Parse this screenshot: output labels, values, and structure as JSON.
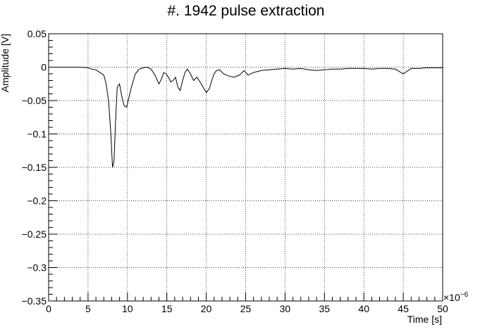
{
  "chart_data": {
    "type": "line",
    "title": "#. 1942 pulse extraction",
    "xlabel": "Time [s]",
    "ylabel": "Amplitude [V]",
    "x_multiplier_base": "×10",
    "x_multiplier_exp": "−6",
    "xlim": [
      0,
      50
    ],
    "ylim": [
      -0.35,
      0.05
    ],
    "x_ticks": [
      0,
      5,
      10,
      15,
      20,
      25,
      30,
      35,
      40,
      45,
      50
    ],
    "x_tick_labels": [
      "0",
      "5",
      "10",
      "15",
      "20",
      "25",
      "30",
      "35",
      "40",
      "45",
      "50"
    ],
    "y_ticks": [
      0.05,
      0,
      -0.05,
      -0.1,
      -0.15,
      -0.2,
      -0.25,
      -0.3,
      -0.35
    ],
    "y_tick_labels": [
      "0.05",
      "0",
      "−0.05",
      "−0.1",
      "−0.15",
      "−0.2",
      "−0.25",
      "−0.3",
      "−0.35"
    ],
    "grid": true,
    "line_color": "#000000",
    "series": [
      {
        "x": [
          0,
          1,
          2,
          3,
          4,
          5,
          5.5,
          6,
          6.5,
          7,
          7.3,
          7.6,
          7.9,
          8.1,
          8.3,
          8.5,
          8.7,
          9.0,
          9.3,
          9.6,
          9.9,
          10.2,
          10.5,
          11,
          11.5,
          12,
          12.5,
          13,
          13.5,
          14,
          14.3,
          14.6,
          14.9,
          15.2,
          15.5,
          15.8,
          16.1,
          16.4,
          16.7,
          17.0,
          17.3,
          17.6,
          18,
          18.4,
          18.8,
          19.2,
          19.6,
          20.0,
          20.4,
          20.7,
          21.0,
          21.3,
          21.7,
          22.2,
          22.8,
          23.5,
          24.2,
          24.8,
          25.3,
          26,
          27,
          28,
          29,
          30,
          31,
          32,
          33,
          34,
          35,
          36,
          37,
          38,
          39,
          40,
          41,
          42,
          43,
          44,
          45,
          46,
          47,
          48,
          49,
          50
        ],
        "y": [
          0,
          0,
          0,
          0,
          0,
          -0.001,
          -0.003,
          -0.004,
          -0.008,
          -0.012,
          -0.025,
          -0.05,
          -0.1,
          -0.15,
          -0.14,
          -0.08,
          -0.03,
          -0.025,
          -0.045,
          -0.058,
          -0.06,
          -0.045,
          -0.03,
          -0.01,
          -0.003,
          -0.001,
          0,
          -0.003,
          -0.012,
          -0.025,
          -0.018,
          -0.008,
          -0.01,
          -0.015,
          -0.022,
          -0.02,
          -0.015,
          -0.03,
          -0.035,
          -0.02,
          -0.008,
          -0.003,
          -0.01,
          -0.02,
          -0.015,
          -0.022,
          -0.03,
          -0.038,
          -0.032,
          -0.02,
          -0.01,
          -0.005,
          -0.004,
          -0.01,
          -0.013,
          -0.015,
          -0.012,
          -0.005,
          -0.012,
          -0.008,
          -0.005,
          -0.004,
          -0.003,
          -0.002,
          -0.003,
          -0.002,
          -0.004,
          -0.005,
          -0.004,
          -0.003,
          -0.003,
          -0.002,
          -0.002,
          -0.002,
          -0.003,
          -0.002,
          -0.002,
          -0.003,
          -0.01,
          -0.002,
          -0.002,
          -0.001,
          -0.001,
          -0.001
        ]
      }
    ]
  }
}
